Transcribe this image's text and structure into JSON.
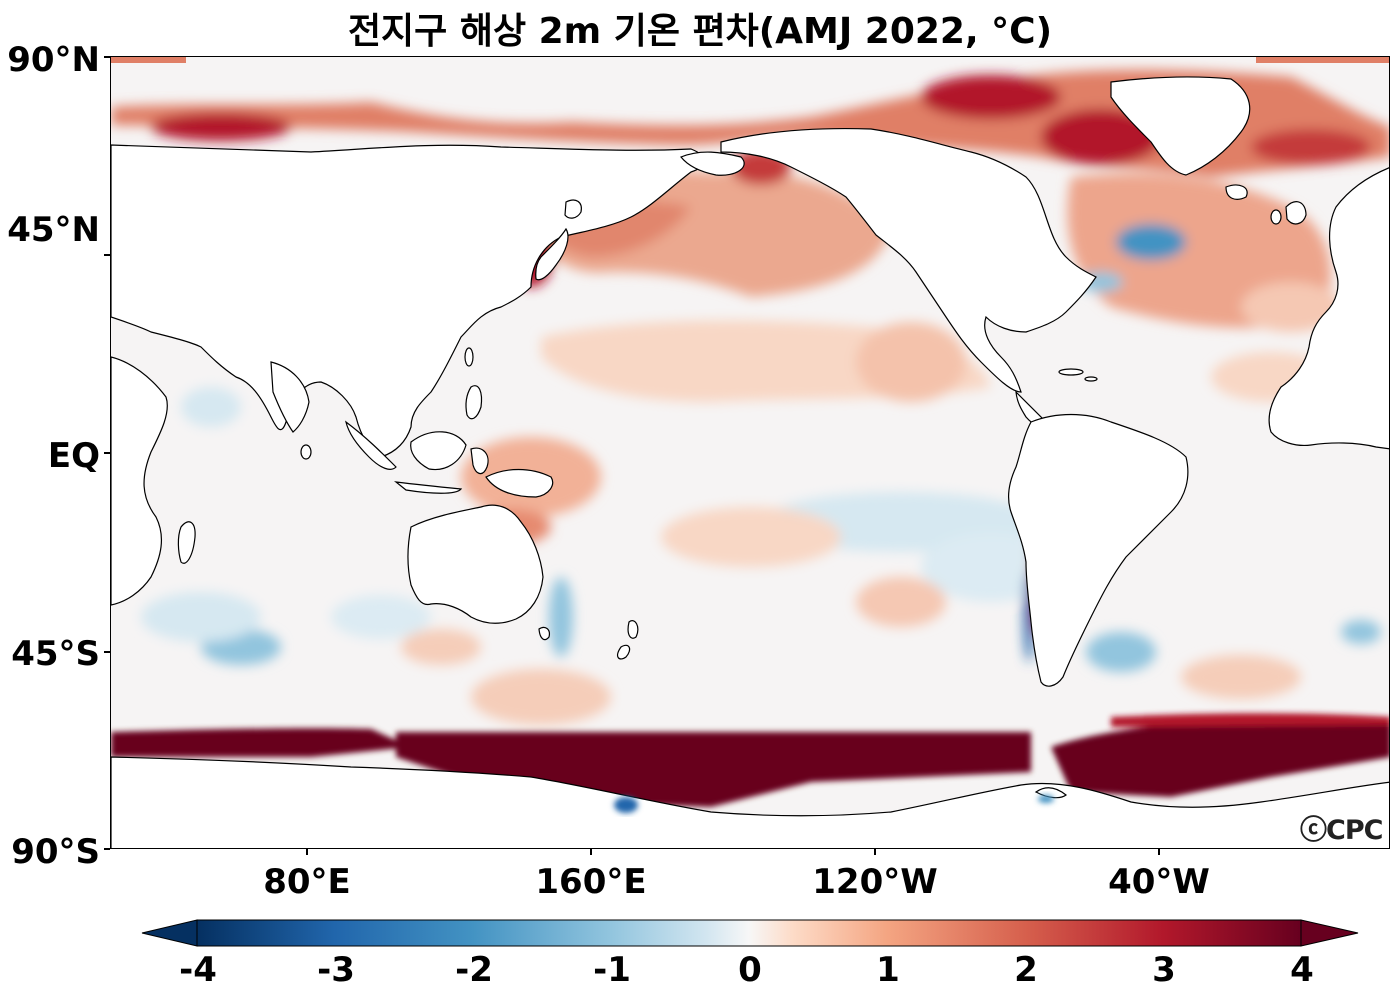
{
  "title": "전지구 해상 2m 기온 편차(AMJ 2022, °C)",
  "map": {
    "projection": "Plate Carree, centered at 160°W",
    "lat_labels": [
      "90°N",
      "45°N",
      "EQ",
      "45°S",
      "90°S"
    ],
    "lon_labels": [
      "80°E",
      "160°E",
      "120°W",
      "40°W"
    ],
    "land_color": "#ffffff",
    "coastline_color": "#000000"
  },
  "colorbar": {
    "colormap": "RdBu_r",
    "min": -4,
    "max": 4,
    "extend": "both",
    "tick_labels": [
      "-4",
      "-3",
      "-2",
      "-1",
      "0",
      "1",
      "2",
      "3",
      "4"
    ],
    "colors": [
      "#053061",
      "#2166ac",
      "#4393c3",
      "#92c5de",
      "#d1e5f0",
      "#f7f7f7",
      "#fddbc7",
      "#f4a582",
      "#d6604d",
      "#b2182b",
      "#67001f"
    ]
  },
  "watermark": "ⓒCPC"
}
